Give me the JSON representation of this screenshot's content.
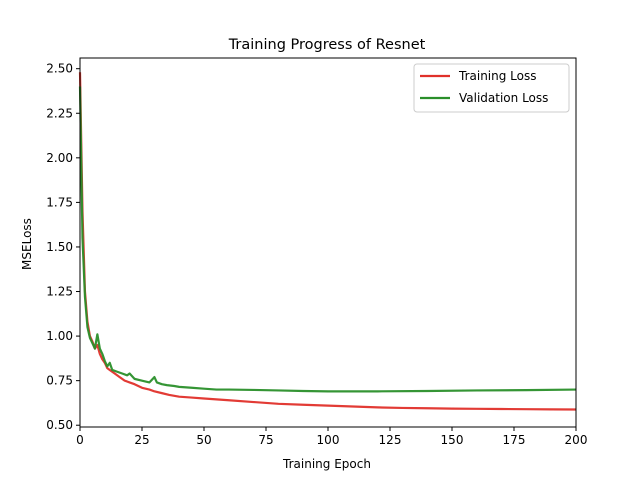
{
  "chart_data": {
    "type": "line",
    "title": "Training Progress of Resnet",
    "xlabel": "Training Epoch",
    "ylabel": "MSELoss",
    "xlim": [
      0,
      200
    ],
    "ylim": [
      0.49,
      2.56
    ],
    "xticks": [
      0,
      25,
      50,
      75,
      100,
      125,
      150,
      175,
      200
    ],
    "yticks": [
      0.5,
      0.75,
      1.0,
      1.25,
      1.5,
      1.75,
      2.0,
      2.25,
      2.5
    ],
    "grid": false,
    "legend_position": "top-right",
    "series": [
      {
        "name": "Training Loss",
        "color": "#e0302a",
        "points": [
          [
            0,
            2.48
          ],
          [
            1,
            1.7
          ],
          [
            2,
            1.25
          ],
          [
            3,
            1.08
          ],
          [
            4,
            1.0
          ],
          [
            5,
            0.97
          ],
          [
            6,
            0.93
          ],
          [
            7,
            0.95
          ],
          [
            8,
            0.9
          ],
          [
            9,
            0.87
          ],
          [
            10,
            0.85
          ],
          [
            11,
            0.82
          ],
          [
            12,
            0.81
          ],
          [
            14,
            0.79
          ],
          [
            16,
            0.77
          ],
          [
            18,
            0.75
          ],
          [
            20,
            0.74
          ],
          [
            22,
            0.73
          ],
          [
            25,
            0.71
          ],
          [
            28,
            0.7
          ],
          [
            30,
            0.69
          ],
          [
            33,
            0.68
          ],
          [
            36,
            0.67
          ],
          [
            40,
            0.66
          ],
          [
            45,
            0.655
          ],
          [
            50,
            0.65
          ],
          [
            55,
            0.645
          ],
          [
            60,
            0.64
          ],
          [
            70,
            0.63
          ],
          [
            80,
            0.62
          ],
          [
            90,
            0.615
          ],
          [
            100,
            0.61
          ],
          [
            110,
            0.605
          ],
          [
            120,
            0.6
          ],
          [
            130,
            0.597
          ],
          [
            140,
            0.595
          ],
          [
            150,
            0.593
          ],
          [
            160,
            0.592
          ],
          [
            170,
            0.591
          ],
          [
            180,
            0.59
          ],
          [
            190,
            0.589
          ],
          [
            200,
            0.588
          ]
        ]
      },
      {
        "name": "Validation Loss",
        "color": "#2a8f2a",
        "points": [
          [
            0,
            2.4
          ],
          [
            1,
            1.55
          ],
          [
            2,
            1.22
          ],
          [
            3,
            1.05
          ],
          [
            4,
            0.99
          ],
          [
            5,
            0.96
          ],
          [
            6,
            0.93
          ],
          [
            7,
            1.01
          ],
          [
            8,
            0.93
          ],
          [
            9,
            0.9
          ],
          [
            10,
            0.86
          ],
          [
            11,
            0.83
          ],
          [
            12,
            0.85
          ],
          [
            13,
            0.81
          ],
          [
            15,
            0.8
          ],
          [
            17,
            0.79
          ],
          [
            19,
            0.78
          ],
          [
            20,
            0.79
          ],
          [
            22,
            0.76
          ],
          [
            25,
            0.75
          ],
          [
            28,
            0.74
          ],
          [
            30,
            0.77
          ],
          [
            31,
            0.74
          ],
          [
            33,
            0.73
          ],
          [
            35,
            0.725
          ],
          [
            38,
            0.72
          ],
          [
            40,
            0.715
          ],
          [
            45,
            0.71
          ],
          [
            50,
            0.705
          ],
          [
            55,
            0.7
          ],
          [
            60,
            0.7
          ],
          [
            70,
            0.698
          ],
          [
            80,
            0.695
          ],
          [
            90,
            0.692
          ],
          [
            100,
            0.69
          ],
          [
            120,
            0.69
          ],
          [
            140,
            0.692
          ],
          [
            160,
            0.695
          ],
          [
            180,
            0.697
          ],
          [
            200,
            0.7
          ]
        ]
      }
    ]
  }
}
